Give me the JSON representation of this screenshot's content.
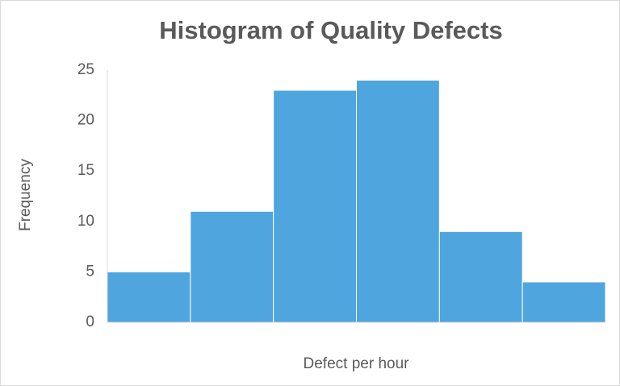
{
  "chart_data": {
    "type": "bar",
    "title": "Histogram of Quality Defects",
    "x_label": "Defect per hour",
    "y_label": "Frequency",
    "categories": [
      null,
      null,
      null,
      null,
      null,
      null
    ],
    "values": [
      5,
      11,
      23,
      24,
      9,
      4
    ],
    "color": "#4fa5dd",
    "ylim": [
      0,
      25
    ],
    "yticks": [
      0,
      5,
      10,
      15,
      20,
      25
    ],
    "grid": false
  }
}
